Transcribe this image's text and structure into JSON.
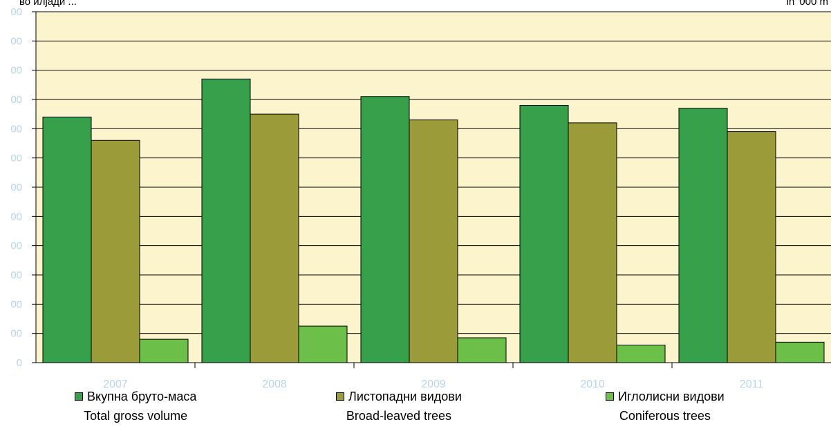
{
  "chart_data": {
    "type": "bar",
    "categories": [
      "2007",
      "2008",
      "2009",
      "2010",
      "2011"
    ],
    "series": [
      {
        "name": "Вкупна бруто-маса / Total gross volume",
        "color": "#36a04a",
        "values": [
          84,
          97,
          91,
          88,
          87
        ]
      },
      {
        "name": "Листопадни видови / Broad-leaved trees",
        "color": "#9b9b39",
        "values": [
          76,
          85,
          83,
          82,
          79
        ]
      },
      {
        "name": "Иглолисни видови / Coniferous trees",
        "color": "#6cc04a",
        "values": [
          8,
          12.5,
          8.5,
          6,
          7
        ]
      }
    ],
    "ylim": [
      0,
      120
    ],
    "y_tick_labels": [
      "0",
      "00",
      "00",
      "00",
      "00",
      "00",
      "00",
      "00",
      "00",
      "00",
      "00",
      "00",
      "00"
    ],
    "grid": true,
    "plot_background": "#fbf4cc",
    "legend_placement": "bottom"
  },
  "units": {
    "left": "во илјади ...",
    "right": "in '000 m"
  },
  "legend": [
    {
      "mk": "Вкупна бруто-маса",
      "en": "Total gross volume",
      "color": "#36a04a"
    },
    {
      "mk": "Листопадни видови",
      "en": "Broad-leaved trees",
      "color": "#9b9b39"
    },
    {
      "mk": "Иглолисни видови",
      "en": "Coniferous trees",
      "color": "#6cc04a"
    }
  ]
}
